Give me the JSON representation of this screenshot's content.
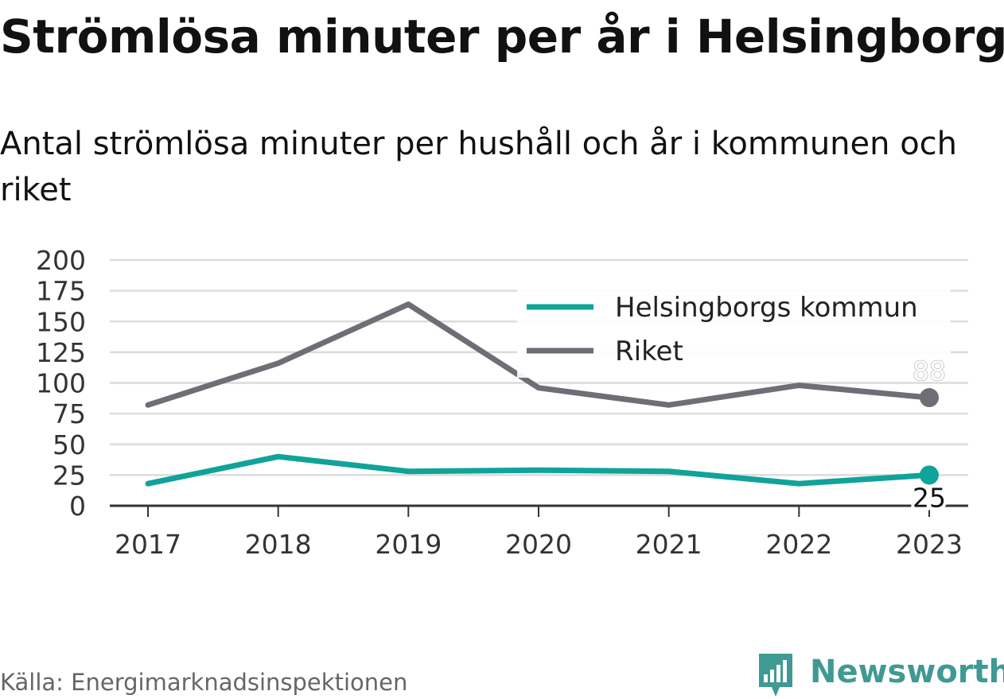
{
  "title": "Strömlösa minuter per år i Helsingborg",
  "subtitle": "Antal strömlösa minuter per hushåll och år i kommunen och riket",
  "source": "Källa: Energimarknadsinspektionen",
  "brand": {
    "name": "Newsworthy",
    "icon": "newsworthy-logo-icon",
    "color": "#3f9a93"
  },
  "chart_data": {
    "type": "line",
    "title": "Strömlösa minuter per år i Helsingborg",
    "subtitle": "Antal strömlösa minuter per hushåll och år i kommunen och riket",
    "x": [
      "2017",
      "2018",
      "2019",
      "2020",
      "2021",
      "2022",
      "2023"
    ],
    "ylim": [
      0,
      200
    ],
    "yticks": [
      0,
      25,
      50,
      75,
      100,
      125,
      150,
      175,
      200
    ],
    "grid": true,
    "legend": "top-right",
    "series": [
      {
        "name": "Helsingborgs kommun",
        "color": "#10a39a",
        "values": [
          18,
          40,
          28,
          29,
          28,
          18,
          25
        ],
        "end_label": "25"
      },
      {
        "name": "Riket",
        "color": "#6f6e76",
        "values": [
          82,
          116,
          164,
          96,
          82,
          98,
          88
        ],
        "end_label": "88"
      }
    ]
  }
}
